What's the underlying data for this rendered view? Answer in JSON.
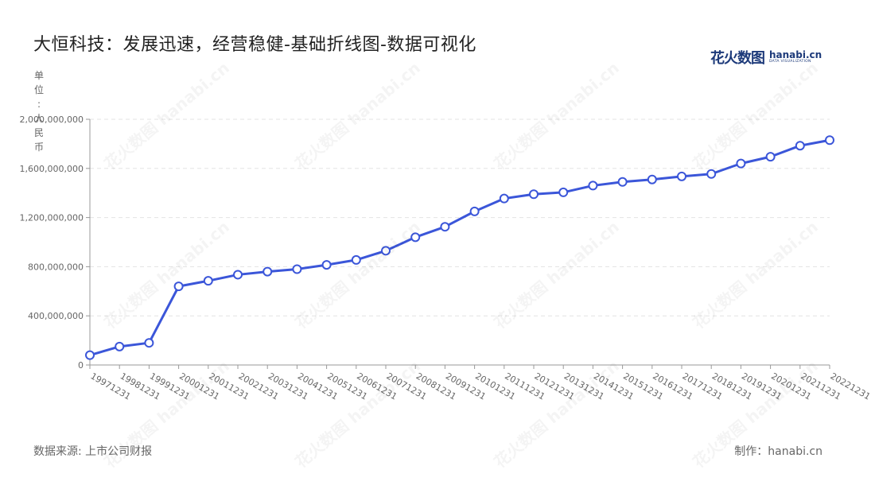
{
  "header": {
    "title": "大恒科技：发展迅速，经营稳健-基础折线图-数据可视化"
  },
  "brand": {
    "cn_text": "花火数图",
    "en_text": "hanabi.cn",
    "en_sub": "DATA VISUALIZATION"
  },
  "unit_label": "单位：人民币",
  "footer": {
    "source": "数据来源: 上市公司财报",
    "credit": "制作：hanabi.cn"
  },
  "watermark_text": "花火数图 hanabi.cn",
  "colors": {
    "line": "#3b56d9",
    "marker_fill": "#ffffff",
    "grid": "#e3e3e3",
    "axis": "#999999"
  },
  "chart_data": {
    "type": "line",
    "title": "大恒科技：发展迅速，经营稳健-基础折线图-数据可视化",
    "ylabel": "单位：人民币",
    "xlabel": "",
    "x": [
      "19971231",
      "19981231",
      "19991231",
      "20001231",
      "20011231",
      "20021231",
      "20031231",
      "20041231",
      "20051231",
      "20061231",
      "20071231",
      "20081231",
      "20091231",
      "20101231",
      "20111231",
      "20121231",
      "20131231",
      "20141231",
      "20151231",
      "20161231",
      "20171231",
      "20181231",
      "20191231",
      "20201231",
      "20211231",
      "20221231"
    ],
    "series": [
      {
        "values": [
          80000000,
          150000000,
          180000000,
          640000000,
          685000000,
          735000000,
          760000000,
          780000000,
          815000000,
          855000000,
          930000000,
          1040000000,
          1125000000,
          1250000000,
          1355000000,
          1390000000,
          1405000000,
          1460000000,
          1490000000,
          1510000000,
          1535000000,
          1555000000,
          1640000000,
          1695000000,
          1785000000,
          1830000000
        ]
      }
    ],
    "ylim": [
      0,
      2000000000
    ],
    "yticks": [
      0,
      400000000,
      800000000,
      1200000000,
      1600000000,
      2000000000
    ],
    "ytick_labels": [
      "0",
      "400,000,000",
      "800,000,000",
      "1,200,000,000",
      "1,600,000,000",
      "2,000,000,000"
    ],
    "grid": true,
    "legend": "none"
  }
}
